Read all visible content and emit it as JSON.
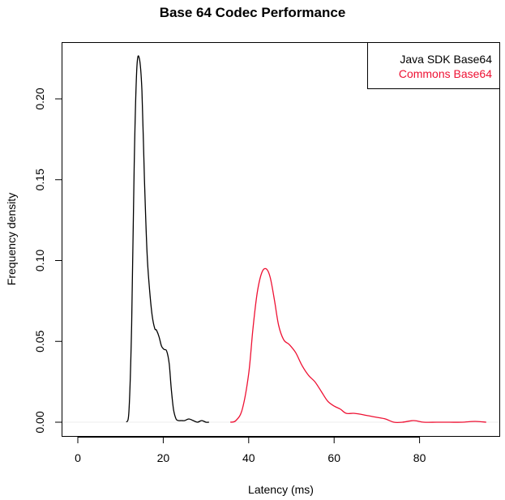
{
  "chart_data": {
    "type": "line",
    "title": "Base 64 Codec Performance",
    "xlabel": "Latency (ms)",
    "ylabel": "Frequency density",
    "xlim": [
      -4,
      99
    ],
    "ylim": [
      -0.009,
      0.236
    ],
    "xticks": [
      0,
      20,
      40,
      60,
      80
    ],
    "yticks": [
      0.0,
      0.05,
      0.1,
      0.15,
      0.2
    ],
    "ytick_labels": [
      "0.00",
      "0.05",
      "0.10",
      "0.15",
      "0.20"
    ],
    "grid": false,
    "legend_position": "top-right",
    "series": [
      {
        "name": "Java SDK Base64",
        "color": "#000000",
        "x": [
          11.4,
          12.0,
          12.6,
          13.2,
          13.8,
          14.4,
          15.0,
          15.6,
          16.2,
          16.8,
          17.4,
          18.0,
          18.4,
          19.0,
          19.6,
          20.2,
          20.8,
          21.4,
          21.9,
          22.4,
          23.0,
          23.6,
          24.2,
          25.0,
          26.0,
          27.0,
          28.0,
          29.0,
          30.0,
          30.7
        ],
        "y": [
          0.0,
          0.008,
          0.06,
          0.16,
          0.218,
          0.225,
          0.205,
          0.15,
          0.105,
          0.082,
          0.066,
          0.058,
          0.057,
          0.053,
          0.047,
          0.045,
          0.044,
          0.036,
          0.02,
          0.008,
          0.002,
          0.001,
          0.001,
          0.001,
          0.002,
          0.001,
          0.0,
          0.001,
          0.0,
          0.0
        ]
      },
      {
        "name": "Commons Base64",
        "color": "#ee1133",
        "x": [
          35.7,
          37.0,
          38.5,
          40.0,
          41.0,
          42.0,
          43.0,
          44.0,
          45.0,
          46.0,
          47.0,
          48.2,
          49.5,
          51.0,
          52.5,
          54.0,
          55.5,
          57.0,
          58.5,
          60.0,
          61.5,
          62.8,
          64.5,
          66.0,
          68.0,
          70.0,
          72.0,
          74.0,
          76.0,
          78.6,
          81.0,
          84.0,
          87.0,
          90.0,
          93.0,
          95.6
        ],
        "y": [
          0.0,
          0.001,
          0.008,
          0.03,
          0.058,
          0.08,
          0.092,
          0.095,
          0.09,
          0.076,
          0.06,
          0.051,
          0.048,
          0.043,
          0.035,
          0.029,
          0.025,
          0.019,
          0.013,
          0.01,
          0.008,
          0.0055,
          0.0055,
          0.005,
          0.004,
          0.003,
          0.002,
          0.0,
          0.0,
          0.001,
          0.0,
          0.0,
          0.0,
          0.0,
          0.0005,
          0.0
        ]
      }
    ]
  },
  "legend": {
    "items": [
      {
        "label": "Java SDK Base64",
        "color": "#000000"
      },
      {
        "label": "Commons Base64",
        "color": "#ee1133"
      }
    ]
  }
}
